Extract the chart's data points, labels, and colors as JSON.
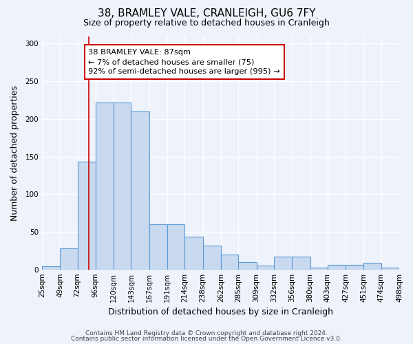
{
  "title": "38, BRAMLEY VALE, CRANLEIGH, GU6 7FY",
  "subtitle": "Size of property relative to detached houses in Cranleigh",
  "xlabel": "Distribution of detached houses by size in Cranleigh",
  "ylabel": "Number of detached properties",
  "bar_edges": [
    25,
    49,
    72,
    96,
    120,
    143,
    167,
    191,
    214,
    238,
    262,
    285,
    309,
    332,
    356,
    380,
    403,
    427,
    451,
    474,
    498
  ],
  "bar_heights": [
    4,
    28,
    143,
    222,
    222,
    210,
    60,
    60,
    44,
    32,
    20,
    10,
    5,
    17,
    17,
    2,
    6,
    6,
    9,
    2
  ],
  "bar_facecolor": "#c9d9f0",
  "bar_edgecolor": "#5b9bd5",
  "property_line_x": 87,
  "property_line_color": "#cc0000",
  "annotation_title": "38 BRAMLEY VALE: 87sqm",
  "annotation_line1": "← 7% of detached houses are smaller (75)",
  "annotation_line2": "92% of semi-detached houses are larger (995) →",
  "annotation_box_edgecolor": "#cc0000",
  "annotation_box_facecolor": "#ffffff",
  "ylim": [
    0,
    310
  ],
  "yticks": [
    0,
    50,
    100,
    150,
    200,
    250,
    300
  ],
  "footer_line1": "Contains HM Land Registry data © Crown copyright and database right 2024.",
  "footer_line2": "Contains public sector information licensed under the Open Government Licence v3.0.",
  "background_color": "#eef2fa",
  "grid_color": "#ffffff",
  "title_fontsize": 11,
  "subtitle_fontsize": 9,
  "xlabel_fontsize": 9,
  "ylabel_fontsize": 9,
  "tick_fontsize": 7.5,
  "footer_fontsize": 6.5
}
